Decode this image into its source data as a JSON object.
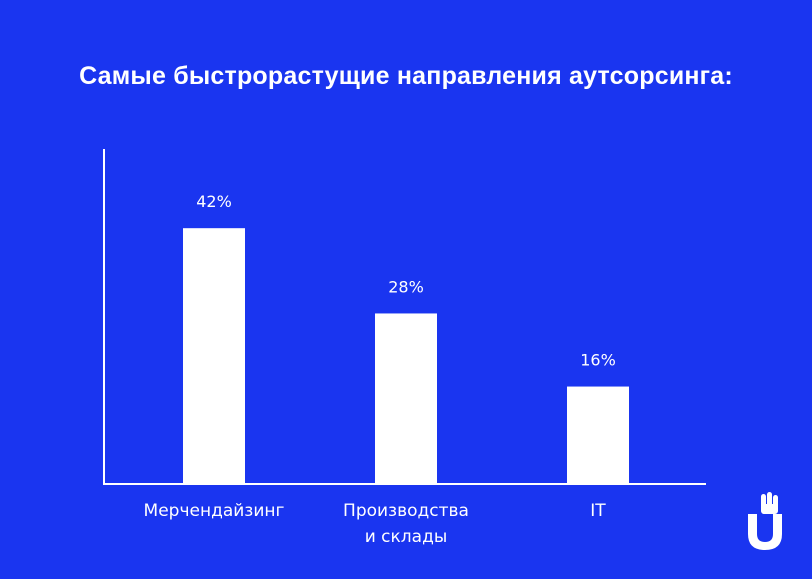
{
  "title": "Самые быстрорастущие направления аутсорсинга:",
  "colors": {
    "background": "#1a35f0",
    "bars": "#ffffff",
    "text": "#ffffff"
  },
  "logo_icon": "u-hand-logo-icon",
  "chart_data": {
    "type": "bar",
    "title": "Самые быстрорастущие направления аутсорсинга:",
    "categories": [
      [
        "Мерчендайзинг"
      ],
      [
        "Производства",
        "и склады"
      ],
      [
        "IT"
      ]
    ],
    "values": [
      42,
      28,
      16
    ],
    "value_labels": [
      "42%",
      "28%",
      "16%"
    ],
    "xlabel": "",
    "ylabel": "",
    "ylim": [
      0,
      55
    ],
    "grid": false,
    "legend": "none"
  }
}
